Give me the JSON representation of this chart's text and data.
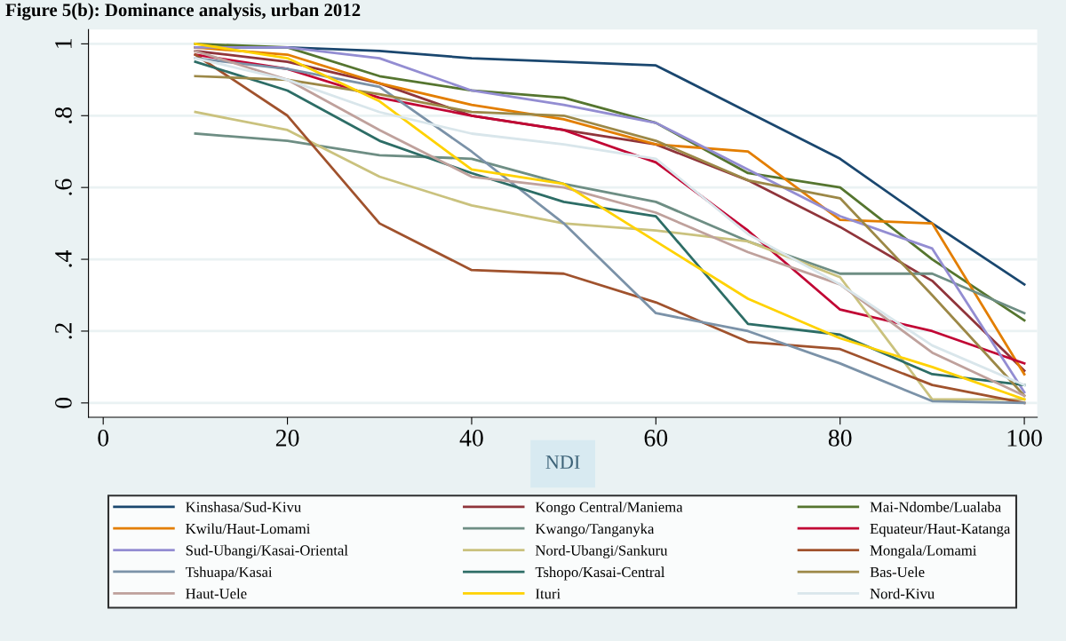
{
  "chart_data": {
    "type": "line",
    "title": "Figure 5(b): Dominance analysis, urban 2012",
    "xlabel": "NDI",
    "x": [
      10,
      20,
      30,
      40,
      50,
      60,
      70,
      80,
      90,
      100
    ],
    "xlim": [
      -1.6,
      101.4
    ],
    "xticks": [
      0,
      20,
      40,
      60,
      80,
      100
    ],
    "ylim": [
      -0.04,
      1.04
    ],
    "yticks": [
      {
        "value": 0,
        "label": "0"
      },
      {
        "value": 0.2,
        "label": ".2"
      },
      {
        "value": 0.4,
        "label": ".4"
      },
      {
        "value": 0.6,
        "label": ".6"
      },
      {
        "value": 0.8,
        "label": ".8"
      },
      {
        "value": 1,
        "label": "1"
      }
    ],
    "grid": "y",
    "legend": "bottom",
    "marker": "none",
    "line_style": "solid",
    "series": [
      {
        "name": "Kinshasa/Sud-Kivu",
        "color": "#1a476f",
        "values": [
          0.99,
          0.99,
          0.98,
          0.96,
          0.95,
          0.94,
          0.81,
          0.68,
          0.5,
          0.33
        ]
      },
      {
        "name": "Kongo Central/Maniema",
        "color": "#90353b",
        "values": [
          0.98,
          0.95,
          0.89,
          0.8,
          0.76,
          0.72,
          0.62,
          0.49,
          0.34,
          0.09
        ]
      },
      {
        "name": "Mai-Ndombe/Lualaba",
        "color": "#55752f",
        "values": [
          1.0,
          0.99,
          0.91,
          0.87,
          0.85,
          0.78,
          0.64,
          0.6,
          0.4,
          0.23
        ]
      },
      {
        "name": "Kwilu/Haut-Lomami",
        "color": "#e37e00",
        "values": [
          0.99,
          0.97,
          0.89,
          0.83,
          0.79,
          0.72,
          0.7,
          0.51,
          0.5,
          0.08
        ]
      },
      {
        "name": "Kwango/Tanganyka",
        "color": "#6e8e84",
        "values": [
          0.75,
          0.73,
          0.69,
          0.68,
          0.61,
          0.56,
          0.45,
          0.36,
          0.36,
          0.25
        ]
      },
      {
        "name": "Equateur/Haut-Katanga",
        "color": "#c10534",
        "values": [
          0.97,
          0.93,
          0.85,
          0.8,
          0.76,
          0.67,
          0.48,
          0.26,
          0.2,
          0.11
        ]
      },
      {
        "name": "Sud-Ubangi/Kasai-Oriental",
        "color": "#938dd2",
        "values": [
          0.99,
          0.99,
          0.96,
          0.87,
          0.83,
          0.78,
          0.65,
          0.52,
          0.43,
          0.03
        ]
      },
      {
        "name": "Nord-Ubangi/Sankuru",
        "color": "#cac27e",
        "values": [
          0.81,
          0.76,
          0.63,
          0.55,
          0.5,
          0.48,
          0.45,
          0.35,
          0.01,
          0.01
        ]
      },
      {
        "name": "Mongala/Lomami",
        "color": "#a0522d",
        "values": [
          0.97,
          0.8,
          0.5,
          0.37,
          0.36,
          0.28,
          0.17,
          0.15,
          0.05,
          0.0
        ]
      },
      {
        "name": "Tshuapa/Kasai",
        "color": "#7b92a8",
        "values": [
          0.96,
          0.93,
          0.88,
          0.7,
          0.5,
          0.25,
          0.2,
          0.11,
          0.005,
          0.0
        ]
      },
      {
        "name": "Tshopo/Kasai-Central",
        "color": "#2d6d66",
        "values": [
          0.95,
          0.87,
          0.73,
          0.64,
          0.56,
          0.52,
          0.22,
          0.19,
          0.08,
          0.05
        ]
      },
      {
        "name": "Bas-Uele",
        "color": "#9c8847",
        "values": [
          0.91,
          0.9,
          0.86,
          0.81,
          0.8,
          0.73,
          0.62,
          0.57,
          0.3,
          0.02
        ]
      },
      {
        "name": "Haut-Uele",
        "color": "#bfa19c",
        "values": [
          0.98,
          0.9,
          0.76,
          0.63,
          0.6,
          0.53,
          0.42,
          0.33,
          0.14,
          0.02
        ]
      },
      {
        "name": "Ituri",
        "color": "#ffd200",
        "values": [
          1.0,
          0.96,
          0.84,
          0.65,
          0.61,
          0.45,
          0.29,
          0.18,
          0.1,
          0.01
        ]
      },
      {
        "name": "Nord-Kivu",
        "color": "#d9e6eb",
        "values": [
          0.96,
          0.9,
          0.81,
          0.75,
          0.72,
          0.68,
          0.47,
          0.33,
          0.16,
          0.05
        ]
      }
    ]
  }
}
